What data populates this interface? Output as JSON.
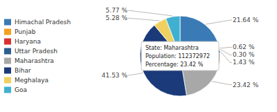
{
  "chart_data": {
    "type": "pie",
    "categories": [
      "Himachal Pradesh",
      "Punjab",
      "Haryana",
      "Uttar Pradesh",
      "Maharashtra",
      "Bihar",
      "Meghalaya",
      "Goa"
    ],
    "values": [
      21.64,
      0.62,
      0.3,
      1.43,
      23.42,
      41.53,
      5.28,
      5.77
    ],
    "value_labels": [
      "21.64 %",
      "0.62 %",
      "0.30 %",
      "1.43 %",
      "23.42 %",
      "41.53 %",
      "5.28 %",
      "5.77 %"
    ],
    "data_labels": true,
    "colors": [
      "#3a7ab5",
      "#f4a020",
      "#d93030",
      "#2b5f8e",
      "#a8a8a8",
      "#1a3a7a",
      "#f0d060",
      "#40b0d0"
    ],
    "annotations": [
      "State: Maharashtra",
      "Population: 112372972",
      "Percentage: 23.42 %"
    ],
    "legend": "left"
  }
}
